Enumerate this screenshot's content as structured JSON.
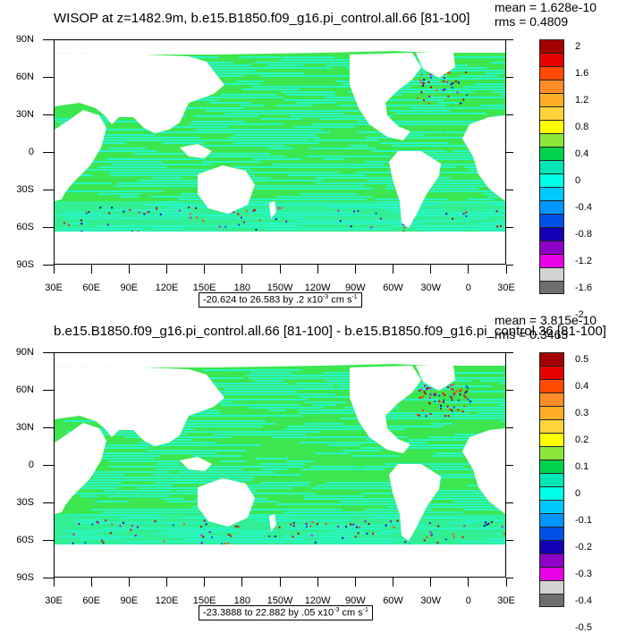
{
  "panels": [
    {
      "title": "WISOP at z=1482.9m, b.e15.B1850.f09_g16.pi_control.all.66 [81-100]",
      "stats": {
        "mean": "mean = 1.628e-10",
        "rms": "rms = 0.4809"
      },
      "range_label": {
        "text": "-20.624 to 26.583 by .2 x10",
        "exp": "-3",
        "unit": " cm s",
        "unit_exp": "-1"
      },
      "colorbar_labels": [
        "2",
        "1.6",
        "1.2",
        "0.8",
        "0.4",
        "0",
        "-0.4",
        "-0.8",
        "-1.2",
        "-1.6",
        "-2"
      ]
    },
    {
      "title": "b.e15.B1850.f09_g16.pi_control.all.66 [81-100] - b.e15.B1850.f09_g16.pi_control.36 [81-100]",
      "stats": {
        "mean": "mean = 3.815e-10",
        "rms": "rms = 0.3465"
      },
      "range_label": {
        "text": "-23.3888 to 22.882 by .05 x10",
        "exp": "-3",
        "unit": " cm s",
        "unit_exp": "-1"
      },
      "colorbar_labels": [
        "0.5",
        "0.4",
        "0.3",
        "0.2",
        "0.1",
        "0",
        "-0.1",
        "-0.2",
        "-0.3",
        "-0.4",
        "-0.5"
      ]
    }
  ],
  "chart_data": [
    {
      "type": "heatmap",
      "title": "WISOP at z=1482.9m, b.e15.B1850.f09_g16.pi_control.all.66 [81-100]",
      "x_ticks": [
        "30E",
        "60E",
        "90E",
        "120E",
        "150E",
        "180",
        "150W",
        "120W",
        "90W",
        "60W",
        "30W",
        "0",
        "30E"
      ],
      "y_ticks": [
        "90N",
        "60N",
        "30N",
        "0",
        "30S",
        "60S",
        "90S"
      ],
      "xlim": [
        30,
        390
      ],
      "ylim": [
        -90,
        90
      ],
      "colorbar_levels": [
        2,
        1.6,
        1.2,
        0.8,
        0.4,
        0,
        -0.4,
        -0.8,
        -1.2,
        -1.6,
        -2
      ],
      "mean": 1.628e-10,
      "rms": 0.4809
    },
    {
      "type": "heatmap",
      "title": "b.e15.B1850.f09_g16.pi_control.all.66 [81-100] - b.e15.B1850.f09_g16.pi_control.36 [81-100]",
      "x_ticks": [
        "30E",
        "60E",
        "90E",
        "120E",
        "150E",
        "180",
        "150W",
        "120W",
        "90W",
        "60W",
        "30W",
        "0",
        "30E"
      ],
      "y_ticks": [
        "90N",
        "60N",
        "30N",
        "0",
        "30S",
        "60S",
        "90S"
      ],
      "xlim": [
        30,
        390
      ],
      "ylim": [
        -90,
        90
      ],
      "colorbar_levels": [
        0.5,
        0.4,
        0.3,
        0.2,
        0.1,
        0,
        -0.1,
        -0.2,
        -0.3,
        -0.4,
        -0.5
      ],
      "mean": 3.815e-10,
      "rms": 0.3465
    }
  ],
  "colors": {
    "colorbar": [
      "#a50000",
      "#e60000",
      "#ff4a00",
      "#ff8c26",
      "#ffae26",
      "#ffd43a",
      "#ffff00",
      "#8ce63c",
      "#00d24b",
      "#00e6b4",
      "#00ffe6",
      "#00c8ff",
      "#0096ff",
      "#0050e6",
      "#1400b4",
      "#8c00c8",
      "#e600e6",
      "#d2d2d2",
      "#6e6e6e"
    ],
    "ocean_pos": "#3ce650",
    "ocean_neg": "#28f5c8",
    "land": "#ffffff"
  }
}
